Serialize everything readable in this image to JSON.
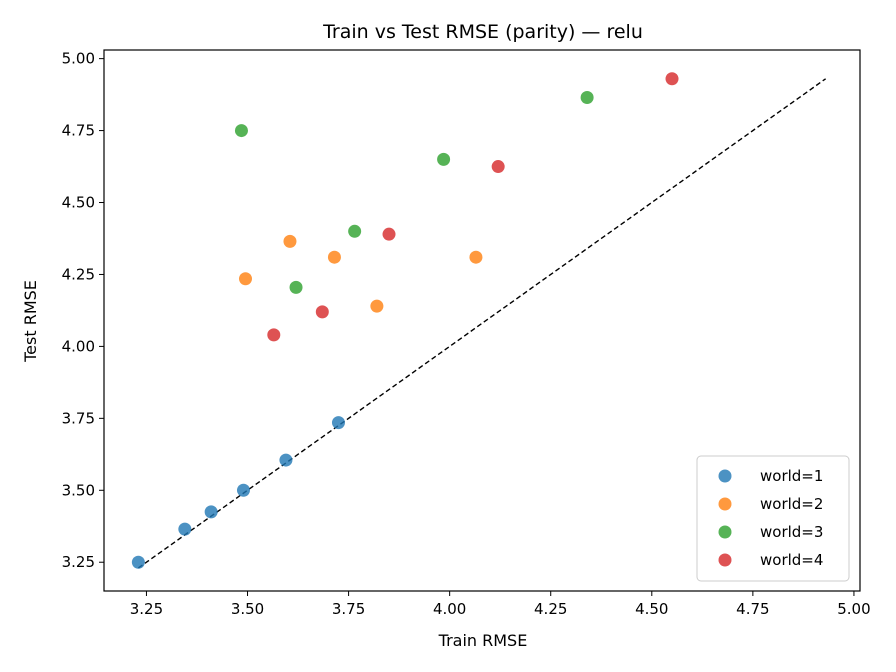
{
  "chart_data": {
    "type": "scatter",
    "title": "Train vs Test RMSE (parity) — relu",
    "xlabel": "Train RMSE",
    "ylabel": "Test RMSE",
    "xlim": [
      3.145,
      5.015
    ],
    "ylim": [
      3.15,
      5.03
    ],
    "x_ticks": [
      "3.25",
      "3.50",
      "3.75",
      "4.00",
      "4.25",
      "4.50",
      "4.75",
      "5.00"
    ],
    "y_ticks": [
      "3.25",
      "3.50",
      "3.75",
      "4.00",
      "4.25",
      "4.50",
      "4.75",
      "5.00"
    ],
    "grid": false,
    "legend_position": "lower-right",
    "reference_line": {
      "style": "dashed",
      "color": "#000000",
      "from": [
        3.23,
        3.23
      ],
      "to": [
        4.93,
        4.93
      ]
    },
    "series": [
      {
        "name": "world=1",
        "color": "#1f77b4",
        "points": [
          [
            3.23,
            3.25
          ],
          [
            3.345,
            3.365
          ],
          [
            3.41,
            3.425
          ],
          [
            3.49,
            3.5
          ],
          [
            3.595,
            3.605
          ],
          [
            3.725,
            3.735
          ]
        ]
      },
      {
        "name": "world=2",
        "color": "#ff7f0e",
        "points": [
          [
            3.495,
            4.235
          ],
          [
            3.605,
            4.365
          ],
          [
            3.715,
            4.31
          ],
          [
            3.82,
            4.14
          ],
          [
            4.065,
            4.31
          ]
        ]
      },
      {
        "name": "world=3",
        "color": "#2ca02c",
        "points": [
          [
            3.485,
            4.75
          ],
          [
            3.62,
            4.205
          ],
          [
            3.765,
            4.4
          ],
          [
            3.985,
            4.65
          ],
          [
            4.34,
            4.865
          ]
        ]
      },
      {
        "name": "world=4",
        "color": "#d62728",
        "points": [
          [
            3.565,
            4.04
          ],
          [
            3.685,
            4.12
          ],
          [
            3.85,
            4.39
          ],
          [
            4.12,
            4.625
          ],
          [
            4.55,
            4.93
          ]
        ]
      }
    ]
  }
}
